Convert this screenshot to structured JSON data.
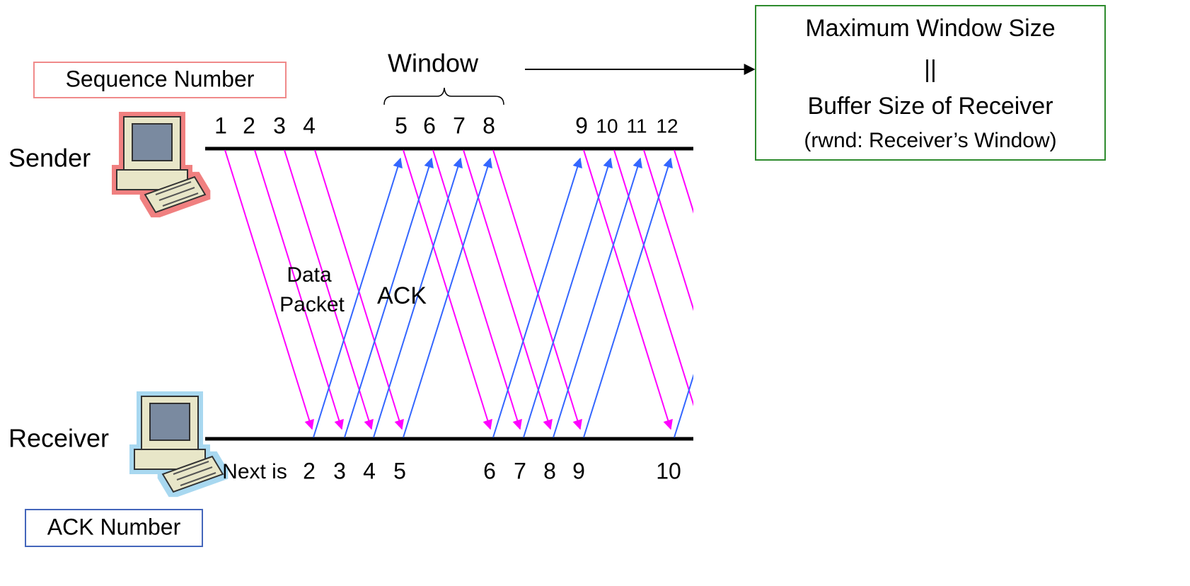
{
  "sender": "Sender",
  "receiver": "Receiver",
  "sequence_box": "Sequence Number",
  "ack_box": "ACK Number",
  "window_label": "Window",
  "sequence_numbers": [
    "1",
    "2",
    "3",
    "4",
    "5",
    "6",
    "7",
    "8",
    "9",
    "10",
    "11",
    "12"
  ],
  "ack_prefix": "Next is",
  "ack_numbers": [
    "2",
    "3",
    "4",
    "5",
    "6",
    "7",
    "8",
    "9",
    "10"
  ],
  "data_packet_label": [
    "Data",
    "Packet"
  ],
  "ack_arrow_label": "ACK",
  "max_window_box": [
    "Maximum Window Size",
    "||",
    "Buffer Size of Receiver",
    "(rwnd: Receiver’s Window)"
  ]
}
